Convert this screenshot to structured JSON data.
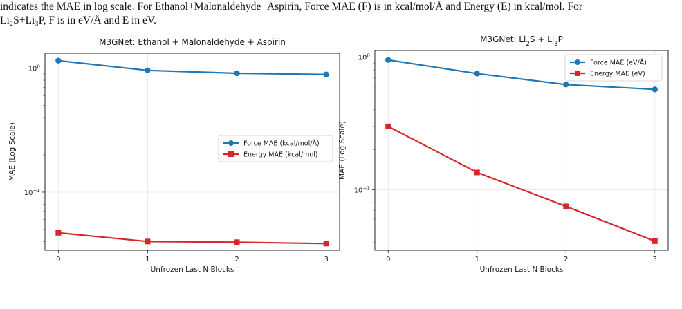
{
  "caption": {
    "line1": "indicates the MAE in log scale. For Ethanol+Malonaldehyde+Aspirin, Force MAE (F) is in kcal/mol/Å and Energy (E) in kcal/mol. For",
    "line2": "Li₂S+Li₃P, F is in eV/Å and E in eV."
  },
  "colors": {
    "force": "#1f77b4",
    "energy": "#d62728",
    "grid": "#e6e6e6",
    "axis": "#222222"
  },
  "chart_data": [
    {
      "type": "line",
      "title": "M3GNet: Ethanol + Malonaldehyde + Aspirin",
      "xlabel": "Unfrozen Last N Blocks",
      "ylabel": "MAE (Log Scale)",
      "yscale": "log",
      "xlim": [
        -0.15,
        3.15
      ],
      "ylim": [
        0.034,
        1.32
      ],
      "x": [
        0,
        1,
        2,
        3
      ],
      "xticks": [
        "0",
        "1",
        "2",
        "3"
      ],
      "yticks": [
        {
          "value": 1,
          "label": "10⁰"
        },
        {
          "value": 0.1,
          "label": "10⁻¹"
        }
      ],
      "grid": true,
      "legend_position": "center-right",
      "series": [
        {
          "name": "Force MAE (kcal/mol/Å)",
          "color": "#1f77b4",
          "marker": "circle",
          "values": [
            1.15,
            0.96,
            0.91,
            0.89
          ]
        },
        {
          "name": "Energy MAE (kcal/mol)",
          "color": "#d62728",
          "marker": "square",
          "values": [
            0.047,
            0.04,
            0.0395,
            0.0385
          ]
        }
      ]
    },
    {
      "type": "line",
      "title": "M3GNet: Li₂S + Li₃P",
      "xlabel": "Unfrozen Last N Blocks",
      "ylabel": "MAE (Log Scale)",
      "yscale": "log",
      "xlim": [
        -0.15,
        3.15
      ],
      "ylim": [
        0.035,
        1.12
      ],
      "x": [
        0,
        1,
        2,
        3
      ],
      "xticks": [
        "0",
        "1",
        "2",
        "3"
      ],
      "yticks": [
        {
          "value": 1,
          "label": "10⁰"
        },
        {
          "value": 0.1,
          "label": "10⁻¹"
        }
      ],
      "grid": true,
      "legend_position": "top-right",
      "series": [
        {
          "name": "Force MAE (eV/Å)",
          "color": "#1f77b4",
          "marker": "circle",
          "values": [
            0.95,
            0.75,
            0.62,
            0.57
          ]
        },
        {
          "name": "Energy MAE (eV)",
          "color": "#d62728",
          "marker": "square",
          "values": [
            0.3,
            0.135,
            0.075,
            0.041
          ]
        }
      ]
    }
  ]
}
